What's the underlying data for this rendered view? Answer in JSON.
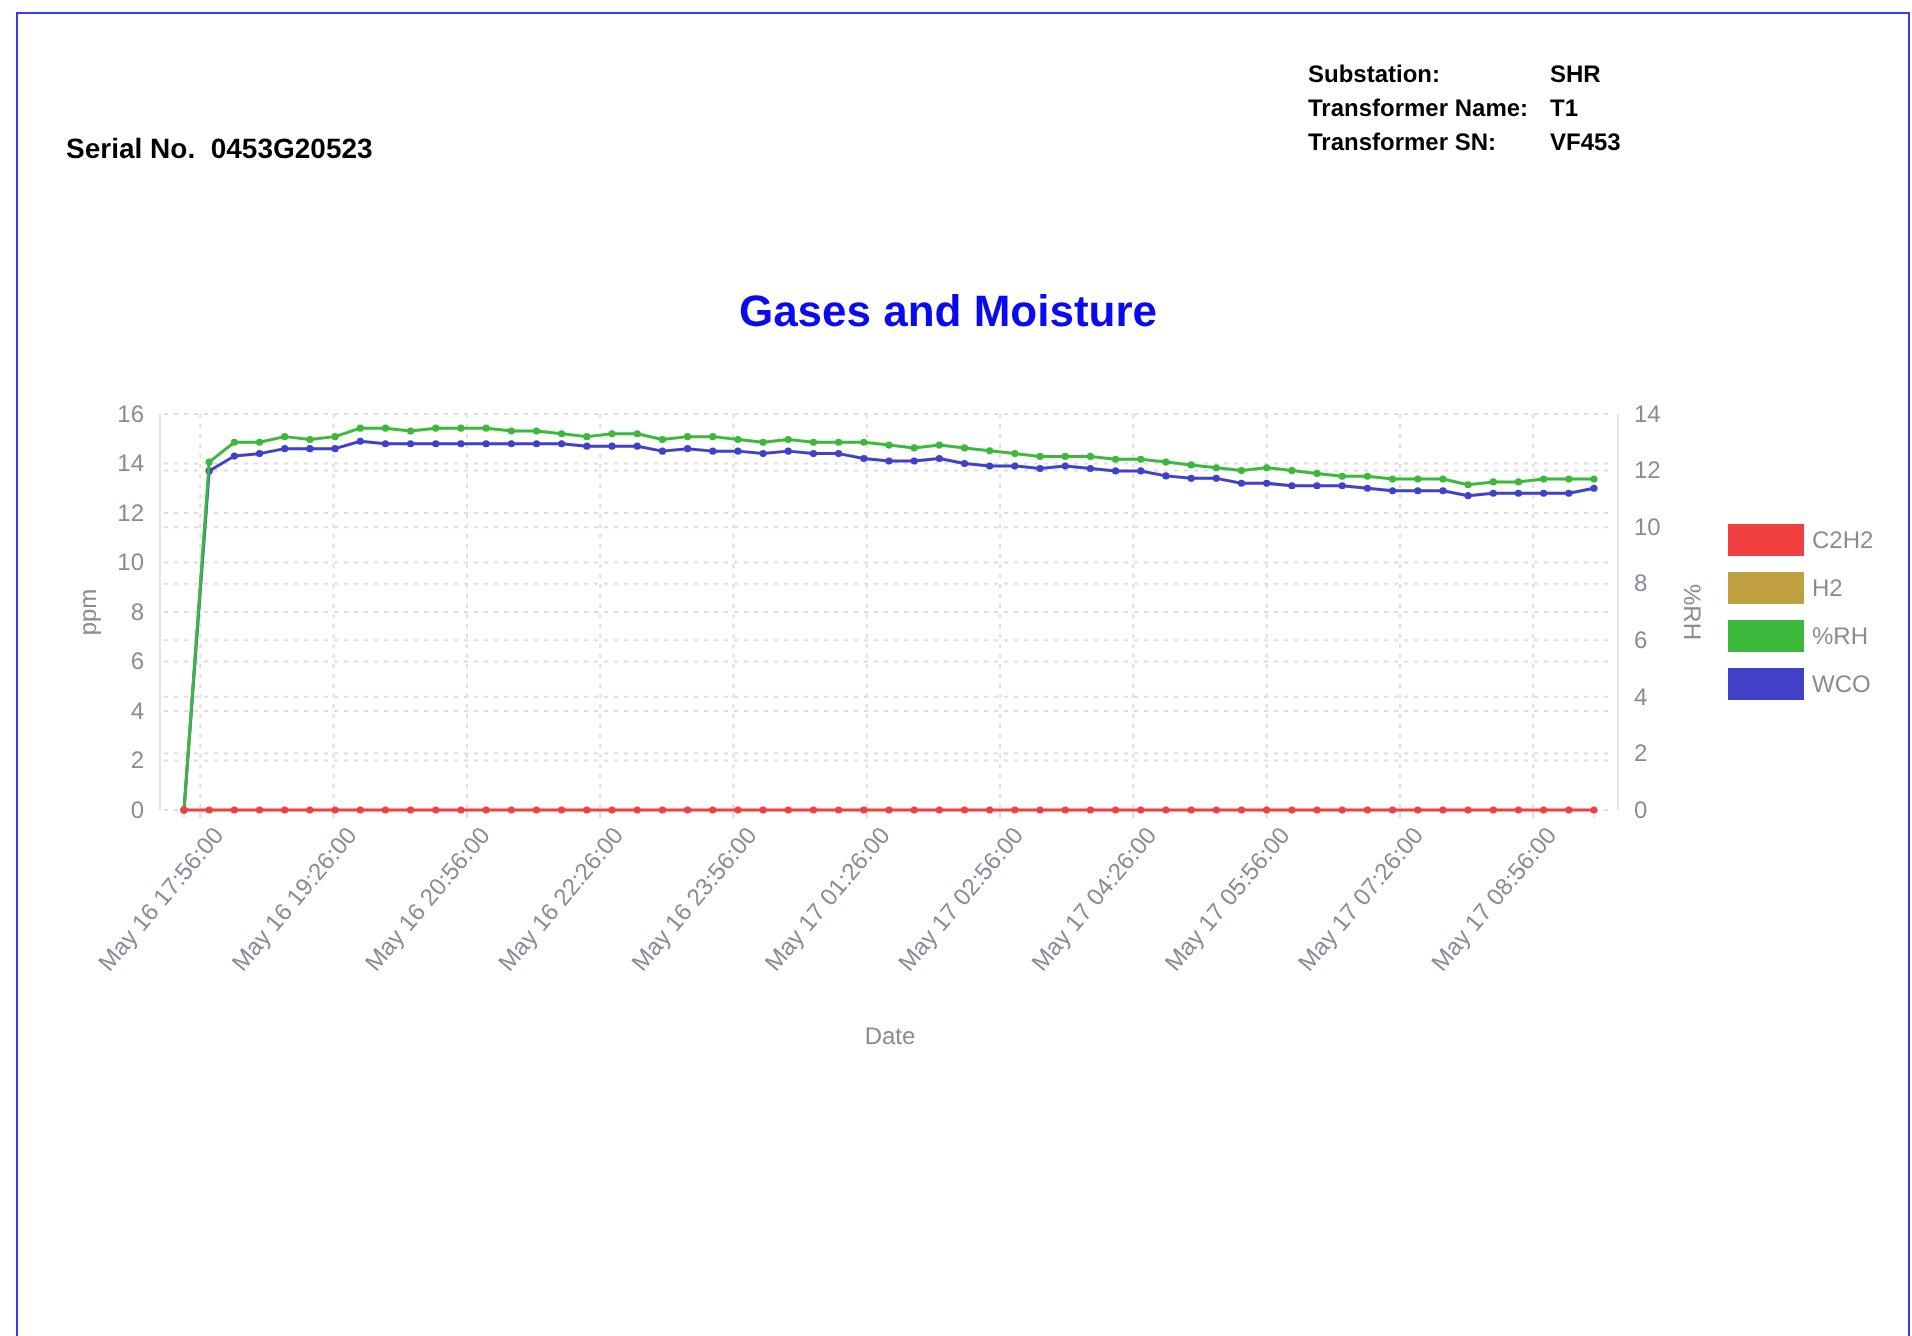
{
  "chart_data": {
    "type": "line",
    "title": "Gases and Moisture",
    "xlabel": "Date",
    "ylabel": "ppm",
    "y2label": "%RH",
    "annotations": [
      "Serial No.  0453G20523",
      "Substation:  SHR",
      "Transformer Name:  T1",
      "Transformer SN:  VF453"
    ],
    "x": [
      "--05-16T17:45",
      "--05-16T18:02",
      "--05-16T18:19",
      "--05-16T18:36",
      "--05-16T18:53",
      "--05-16T19:10",
      "--05-16T19:27",
      "--05-16T19:44",
      "--05-16T20:01",
      "--05-16T20:18",
      "--05-16T20:35",
      "--05-16T20:52",
      "--05-16T21:09",
      "--05-16T21:26",
      "--05-16T21:43",
      "--05-16T22:00",
      "--05-16T22:17",
      "--05-16T22:34",
      "--05-16T22:51",
      "--05-16T23:08",
      "--05-16T23:25",
      "--05-16T23:42",
      "--05-16T23:59",
      "--05-17T00:16",
      "--05-17T00:33",
      "--05-17T00:50",
      "--05-17T01:07",
      "--05-17T01:24",
      "--05-17T01:41",
      "--05-17T01:58",
      "--05-17T02:15",
      "--05-17T02:32",
      "--05-17T02:49",
      "--05-17T03:06",
      "--05-17T03:23",
      "--05-17T03:40",
      "--05-17T03:57",
      "--05-17T04:14",
      "--05-17T04:31",
      "--05-17T04:48",
      "--05-17T05:05",
      "--05-17T05:22",
      "--05-17T05:39",
      "--05-17T05:56",
      "--05-17T06:13",
      "--05-17T06:30",
      "--05-17T06:47",
      "--05-17T07:04",
      "--05-17T07:21",
      "--05-17T07:38",
      "--05-17T07:55",
      "--05-17T08:12",
      "--05-17T08:29",
      "--05-17T08:46",
      "--05-17T09:03",
      "--05-17T09:20",
      "--05-17T09:37"
    ],
    "xlim": [
      "--05-16T17:45",
      "--05-17T09:37"
    ],
    "xticks": [
      {
        "value": "--05-16T17:56",
        "label": "May 16 17:56:00"
      },
      {
        "value": "--05-16T19:26",
        "label": "May 16 19:26:00"
      },
      {
        "value": "--05-16T20:56",
        "label": "May 16 20:56:00"
      },
      {
        "value": "--05-16T22:26",
        "label": "May 16 22:26:00"
      },
      {
        "value": "--05-16T23:56",
        "label": "May 16 23:56:00"
      },
      {
        "value": "--05-17T01:26",
        "label": "May 17 01:26:00"
      },
      {
        "value": "--05-17T02:56",
        "label": "May 17 02:56:00"
      },
      {
        "value": "--05-17T04:26",
        "label": "May 17 04:26:00"
      },
      {
        "value": "--05-17T05:56",
        "label": "May 17 05:56:00"
      },
      {
        "value": "--05-17T07:26",
        "label": "May 17 07:26:00"
      },
      {
        "value": "--05-17T08:56",
        "label": "May 17 08:56:00"
      }
    ],
    "ylim": [
      0,
      16
    ],
    "yticks": [
      0,
      2,
      4,
      6,
      8,
      10,
      12,
      14,
      16
    ],
    "y2lim": [
      0,
      14
    ],
    "y2ticks": [
      0,
      2,
      4,
      6,
      8,
      10,
      12,
      14
    ],
    "grid": true,
    "legend": "right",
    "marker": "circle",
    "series": [
      {
        "name": "C2H2",
        "color": "#f04040",
        "values": [
          0,
          0,
          0,
          0,
          0,
          0,
          0,
          0,
          0,
          0,
          0,
          0,
          0,
          0,
          0,
          0,
          0,
          0,
          0,
          0,
          0,
          0,
          0,
          0,
          0,
          0,
          0,
          0,
          0,
          0,
          0,
          0,
          0,
          0,
          0,
          0,
          0,
          0,
          0,
          0,
          0,
          0,
          0,
          0,
          0,
          0,
          0,
          0,
          0,
          0,
          0,
          0,
          0,
          0,
          0,
          0,
          0
        ]
      },
      {
        "name": "H2",
        "color": "#bfa040",
        "values": [
          null,
          null,
          null,
          null,
          null,
          null,
          null,
          null,
          null,
          null,
          null,
          null,
          null,
          null,
          null,
          null,
          null,
          null,
          null,
          null,
          null,
          null,
          null,
          null,
          null,
          null,
          null,
          null,
          null,
          null,
          null,
          null,
          null,
          null,
          null,
          null,
          null,
          null,
          null,
          null,
          null,
          null,
          null,
          null,
          null,
          null,
          null,
          null,
          null,
          null,
          null,
          null,
          null,
          null,
          null,
          null,
          null
        ]
      },
      {
        "name": "%RH",
        "color": "#3cb83c",
        "axis": "y2",
        "values": [
          0,
          12.3,
          13.0,
          13.0,
          13.2,
          13.1,
          13.2,
          13.5,
          13.5,
          13.4,
          13.5,
          13.5,
          13.5,
          13.4,
          13.4,
          13.3,
          13.2,
          13.3,
          13.3,
          13.1,
          13.2,
          13.2,
          13.1,
          13.0,
          13.1,
          13.0,
          13.0,
          13.0,
          12.9,
          12.8,
          12.9,
          12.8,
          12.7,
          12.6,
          12.5,
          12.5,
          12.5,
          12.4,
          12.4,
          12.3,
          12.2,
          12.1,
          12.0,
          12.1,
          12.0,
          11.9,
          11.8,
          11.8,
          11.7,
          11.7,
          11.7,
          11.5,
          11.6,
          11.6,
          11.7,
          11.7,
          11.7
        ]
      },
      {
        "name": "WCO",
        "color": "#4040c8",
        "values": [
          0,
          13.7,
          14.3,
          14.4,
          14.6,
          14.6,
          14.6,
          14.9,
          14.8,
          14.8,
          14.8,
          14.8,
          14.8,
          14.8,
          14.8,
          14.8,
          14.7,
          14.7,
          14.7,
          14.5,
          14.6,
          14.5,
          14.5,
          14.4,
          14.5,
          14.4,
          14.4,
          14.2,
          14.1,
          14.1,
          14.2,
          14.0,
          13.9,
          13.9,
          13.8,
          13.9,
          13.8,
          13.7,
          13.7,
          13.5,
          13.4,
          13.4,
          13.2,
          13.2,
          13.1,
          13.1,
          13.1,
          13.0,
          12.9,
          12.9,
          12.9,
          12.7,
          12.8,
          12.8,
          12.8,
          12.8,
          13.0
        ]
      }
    ]
  }
}
